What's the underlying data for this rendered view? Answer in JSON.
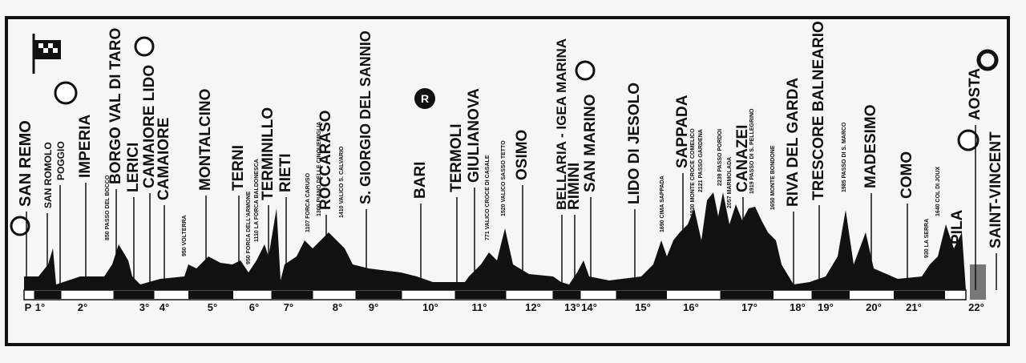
{
  "towns": [
    "SAN REMO",
    "SAN ROMOLO",
    "POGGIO",
    "IMPERIA",
    "BORGO VAL DI TARO",
    "LERICI",
    "CAMAIORE LIDO",
    "CAMAIORE",
    "MONTALCINO",
    "TERNI",
    "TERMINILLO",
    "RIETI",
    "ROCCARASO",
    "S. GIORGIO DEL SANNIO",
    "BARI",
    "TERMOLI",
    "GIULIANOVA",
    "OSIMO",
    "BELLARIA - IGEA MARINA",
    "RIMINI",
    "SAN MARINO",
    "LIDO DI JESOLO",
    "SAPPADA",
    "CANAZEI",
    "RIVA DEL GARDA",
    "TRESCORE BALNEARIO",
    "MADESIMO",
    "COMO",
    "PILA",
    "AOSTA",
    "SAINT-VINCENT"
  ],
  "stages": [
    "P",
    "1°",
    "2°",
    "3°",
    "4°",
    "5°",
    "6°",
    "7°",
    "8°",
    "9°",
    "10°",
    "11°",
    "12°",
    "13°",
    "14°",
    "15°",
    "16°",
    "17°",
    "18°",
    "19°",
    "20°",
    "21°",
    "22°"
  ],
  "passes": [
    "850 PASSO DEL BOCCO",
    "950 VOLTERRA",
    "950 FORCA DELL'ARMONE",
    "1110 LA FORCA BALDONESCA",
    "1107 FORCA CARUSO",
    "1300 PIANO DELLE CINQUEMIGLIA",
    "1410 VALICO S. CALVARIO",
    "771 VALICO CROCE DI CASALE",
    "1520 VALICO SASSO TETTO",
    "1690 CIMA SAPPADA",
    "1930 MONTE CROCE COMELICO",
    "2121 PASSO GARDENA",
    "2239 PASSO PORDOI",
    "2057 MARMOLADA",
    "1919 PASSO DI S. PELLEGRINO",
    "1650 MONTE BONDONE",
    "1985 PASSO DI S. MARCO",
    "930 LA SERRA",
    "1640 COL DI JOUX"
  ]
}
